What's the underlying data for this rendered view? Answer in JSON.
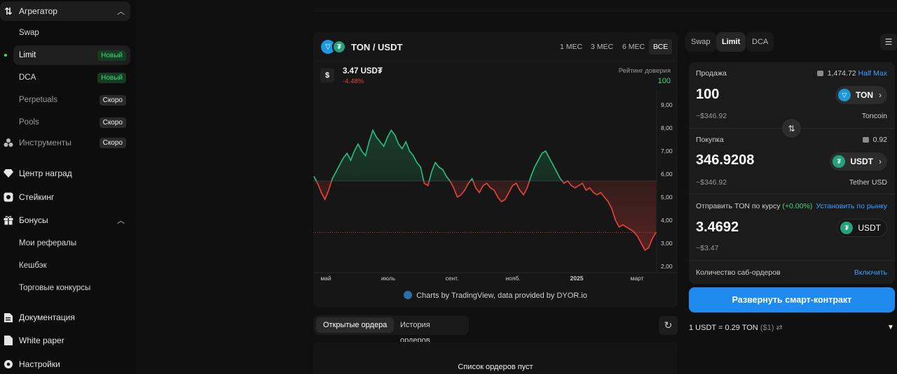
{
  "sidebar": {
    "aggregator": "Агрегатор",
    "swap": "Swap",
    "limit": "Limit",
    "limit_badge": "Новый",
    "dca": "DCA",
    "dca_badge": "Новый",
    "perpetuals": "Perpetuals",
    "perpetuals_badge": "Скоро",
    "pools": "Pools",
    "pools_badge": "Скоро",
    "tools": "Инструменты",
    "tools_badge": "Скоро",
    "rewards": "Центр наград",
    "staking": "Стейкинг",
    "bonuses": "Бонусы",
    "referrals": "Мои рефералы",
    "cashback": "Кешбэк",
    "contests": "Торговые конкурсы",
    "docs": "Документация",
    "whitepaper": "White paper",
    "settings": "Настройки"
  },
  "chart_panel": {
    "pair": "TON / USDT",
    "ranges": [
      "1 МЕС",
      "3 МЕС",
      "6 МЕС",
      "ВСЕ"
    ],
    "active_range": "ВСЕ",
    "price": "3.47 USD₮",
    "change": "-4.48%",
    "trust_label": "Рейтинг доверия",
    "trust_value": "100",
    "attribution": "Charts by TradingView, data provided by DYOR.io"
  },
  "chart_data": {
    "type": "line",
    "x_labels": [
      "май",
      "июль",
      "сент.",
      "нояб.",
      "2025",
      "март"
    ],
    "y_ticks": [
      "9,00",
      "8,00",
      "7,00",
      "6,00",
      "5,00",
      "4,00",
      "3,00",
      "2,00"
    ],
    "ylim": [
      2,
      9
    ],
    "baseline": 5.7,
    "current": 3.47,
    "colors": {
      "up": "#26c281",
      "down": "#e8443b"
    },
    "values": [
      5.9,
      5.6,
      5.2,
      4.9,
      5.3,
      5.8,
      6.1,
      6.4,
      6.7,
      6.9,
      6.6,
      7.0,
      7.3,
      7.0,
      6.8,
      7.4,
      7.9,
      7.6,
      7.4,
      7.2,
      7.6,
      7.9,
      7.7,
      7.3,
      7.1,
      7.4,
      7.0,
      6.8,
      6.5,
      6.3,
      5.6,
      5.5,
      6.1,
      6.5,
      6.3,
      6.2,
      5.9,
      5.7,
      5.4,
      5.0,
      5.1,
      5.3,
      5.6,
      5.8,
      5.4,
      5.2,
      5.5,
      5.6,
      5.4,
      5.3,
      5.0,
      4.8,
      4.9,
      5.2,
      5.5,
      5.6,
      5.3,
      5.1,
      5.4,
      5.9,
      6.3,
      6.6,
      6.9,
      7.0,
      6.7,
      6.4,
      6.1,
      5.8,
      5.6,
      5.7,
      5.5,
      5.4,
      5.5,
      5.6,
      5.3,
      5.4,
      5.2,
      5.1,
      5.2,
      5.0,
      4.8,
      4.5,
      4.0,
      3.7,
      3.8,
      3.7,
      3.6,
      3.5,
      3.3,
      3.0,
      2.7,
      2.8,
      3.2,
      3.47
    ]
  },
  "orders": {
    "tabs": [
      "Открытые ордера",
      "История ордеров"
    ],
    "empty": "Список ордеров пуст"
  },
  "trade": {
    "tabs": [
      "Swap",
      "Limit",
      "DCA"
    ],
    "sell_label": "Продажа",
    "sell_balance": "1,474.72",
    "half": "Half",
    "max": "Max",
    "sell_amount": "100",
    "sell_token": "TON",
    "sell_usd": "~$346.92",
    "sell_token_name": "Toncoin",
    "buy_label": "Покупка",
    "buy_balance": "0.92",
    "buy_amount": "346.9208",
    "buy_token": "USDT",
    "buy_usd": "~$346.92",
    "buy_token_name": "Tether USD",
    "price_label": "Отправить TON по курсу",
    "price_delta": "(+0.00%)",
    "set_market": "Установить по рынку",
    "price_amount": "3.4692",
    "price_token": "USDT",
    "price_usd": "~$3.47",
    "suborders_label": "Количество саб-ордеров",
    "suborders_action": "Включить",
    "deploy": "Развернуть смарт-контракт",
    "rate": "1 USDT = 0.29 TON",
    "rate_usd": "($1)"
  }
}
